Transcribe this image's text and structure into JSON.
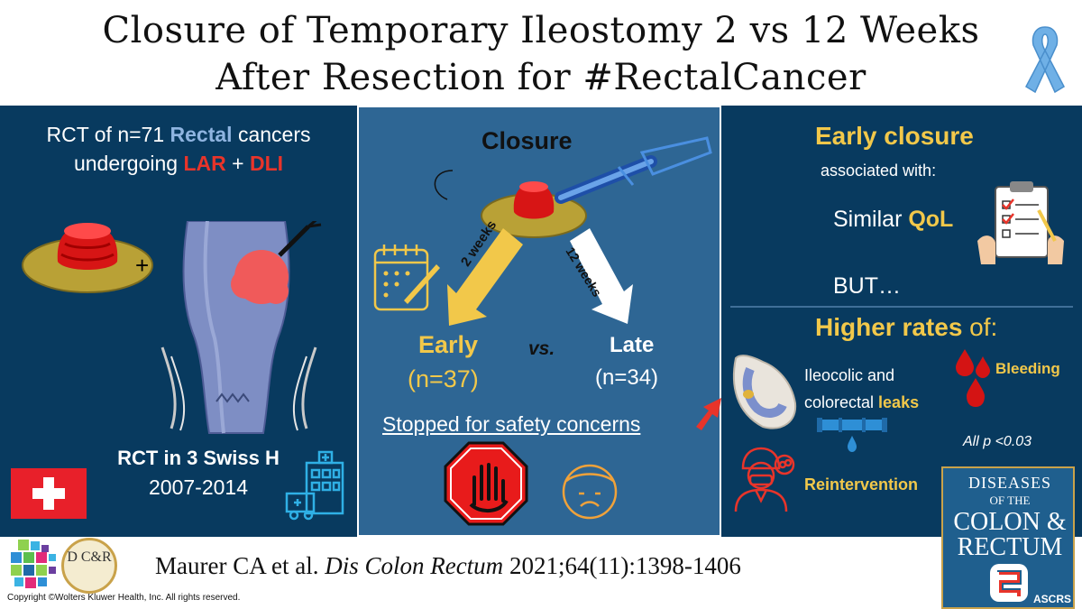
{
  "title": {
    "line1": "Closure of Temporary Ileostomy 2 vs 12 Weeks",
    "line2": "After Resection for #RectalCancer"
  },
  "left": {
    "l1_a": "RCT of n=71 ",
    "l1_b": "Rectal",
    "l1_c": " cancers",
    "l2_a": "undergoing ",
    "l2_b": "LAR",
    "l2_c": " + ",
    "l2_d": "DLI",
    "plus": "+",
    "rct_sites": "RCT in 3 Swiss H",
    "years": "2007-2014"
  },
  "middle": {
    "closure": "Closure",
    "arrow_left": "2 weeks",
    "arrow_right": "12 weeks",
    "early": "Early",
    "early_n": "(n=37)",
    "vs": "vs.",
    "late": "Late",
    "late_n": "(n=34)",
    "stopped": "Stopped for safety concerns"
  },
  "right": {
    "early_closure": "Early closure",
    "assoc": "associated with:",
    "similar": "Similar ",
    "qol": "QoL",
    "but": "BUT…",
    "higher_a": "Higher rates",
    "higher_b": " of:",
    "ileo1": "Ileocolic and",
    "ileo2_a": "colorectal ",
    "ileo2_b": "leaks",
    "bleeding": "Bleeding",
    "pval": "All p <0.03",
    "reint": "Reintervention"
  },
  "footer": {
    "cite_a": "Maurer CA et al. ",
    "cite_b": "Dis Colon Rectum",
    "cite_c": " 2021;64(11):1398-1406",
    "copyright": "Copyright ©Wolters Kluwer Health, Inc. All rights reserved."
  },
  "journal": {
    "l1": "DISEASES",
    "l2": "OF THE",
    "l3": "COLON &",
    "l4": "RECTUM",
    "l5": "ASCRS"
  },
  "logo": {
    "dcr": "D C&R"
  },
  "colors": {
    "panel_dark": "#083a5f",
    "panel_mid": "#2e6694",
    "accent_yellow": "#f2c84a",
    "accent_red": "#e8342a",
    "accent_blue": "#8fb4e0"
  }
}
